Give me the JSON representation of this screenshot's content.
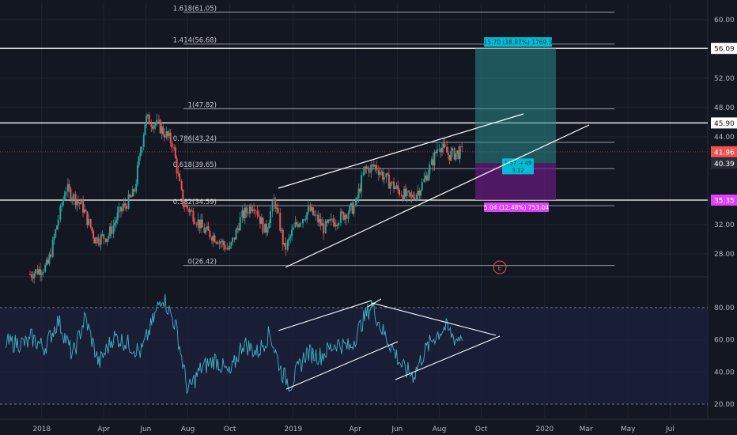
{
  "colors": {
    "background": "#131722",
    "grid": "#1f2433",
    "up": "#26a69a",
    "down": "#ef5350",
    "rsi_line": "#3fb4c6",
    "rsi_band": "#1b1f3b",
    "axis_text": "#b2b5be",
    "fib_line": "#9598a1",
    "white_line": "#ffffff",
    "price_line": "#ef5350",
    "target_zone": "#2a8a8c",
    "stop_zone": "#6a1a7e",
    "target_label": "#00bcd4",
    "stop_label": "#e040fb"
  },
  "chart_data": [
    {
      "type": "candlestick",
      "title": "",
      "x_axis_ticks": [
        "2018",
        "Apr",
        "Jun",
        "Aug",
        "Oct",
        "2019",
        "Apr",
        "Jun",
        "Aug",
        "Oct",
        "2020",
        "Mar",
        "May",
        "Jul"
      ],
      "y_axis_ticks": [
        "60.00",
        "52.00",
        "48.00",
        "44.00",
        "32.00",
        "28.00"
      ],
      "y_range": [
        24,
        63
      ],
      "price_segments": [
        {
          "x": [
            "2017-12-15",
            "2018-01-10",
            "2018-02-05",
            "2018-03-01",
            "2018-03-20",
            "2018-04-08",
            "2018-04-25",
            "2018-05-15",
            "2018-06-01",
            "2018-06-20",
            "2018-07-10",
            "2018-07-25",
            "2018-08-08",
            "2018-08-25",
            "2018-09-12",
            "2018-10-01",
            "2018-10-18",
            "2018-11-05",
            "2018-11-22",
            "2018-12-05",
            "2018-12-20",
            "2019-01-05",
            "2019-01-25",
            "2019-02-15",
            "2019-03-10",
            "2019-04-01",
            "2019-04-15",
            "2019-05-01",
            "2019-05-18",
            "2019-06-05",
            "2019-06-20",
            "2019-07-05",
            "2019-07-20",
            "2019-08-01",
            "2019-08-15",
            "2019-09-05"
          ],
          "close": [
            25.2,
            26.4,
            37.0,
            34.5,
            30.0,
            30.5,
            33.8,
            36.2,
            46.5,
            45.5,
            43.2,
            35.0,
            33.5,
            31.2,
            30.2,
            28.5,
            33.0,
            35.0,
            31.0,
            35.5,
            28.5,
            32.0,
            34.0,
            31.5,
            33.0,
            34.5,
            39.5,
            40.0,
            38.0,
            36.5,
            35.5,
            37.0,
            40.0,
            43.0,
            41.5,
            41.96
          ]
        }
      ],
      "fib_levels": [
        {
          "ratio": "1.618",
          "value": 61.05,
          "label": "1.618(61.05)"
        },
        {
          "ratio": "1.414",
          "value": 56.68,
          "label": "1.414(56.68)"
        },
        {
          "ratio": "1",
          "value": 47.82,
          "label": "1(47.82)"
        },
        {
          "ratio": "0.786",
          "value": 43.24,
          "label": "0.786(43.24)"
        },
        {
          "ratio": "0.618",
          "value": 39.65,
          "label": "0.618(39.65)"
        },
        {
          "ratio": "0.382",
          "value": 34.59,
          "label": "0.382(34.59)"
        },
        {
          "ratio": "0",
          "value": 26.42,
          "label": "0(26.42)"
        }
      ],
      "horizontal_lines": [
        56.09,
        45.9,
        35.35
      ],
      "price_labels": [
        {
          "value": "56.09",
          "level": 56.09,
          "bg": "#ffffff",
          "fg": "#131722"
        },
        {
          "value": "45.90",
          "level": 45.9,
          "bg": "#ffffff",
          "fg": "#131722"
        },
        {
          "value": "41.96",
          "level": 41.96,
          "bg": "#ef5350",
          "fg": "#ffffff"
        },
        {
          "value": "40.39",
          "level": 40.39,
          "bg": "#2a2e39",
          "fg": "#ffffff"
        },
        {
          "value": "35.35",
          "level": 35.35,
          "bg": "#e040fb",
          "fg": "#ffffff"
        }
      ],
      "position_tool": {
        "entry": 40.39,
        "target": 56.09,
        "stop": 35.35,
        "target_text": "15.70 (38.87%) 1769.3",
        "stop_text": "5.04 (12.48%) 753.04",
        "ratio_text_line1": "1.57 → 49",
        "ratio_text_line2": "3.12"
      },
      "earnings_marker": "E"
    },
    {
      "type": "line",
      "title": "",
      "y_axis_ticks": [
        "80.00",
        "60.00",
        "40.00",
        "20.00"
      ],
      "y_range": [
        12,
        92
      ],
      "band": [
        20,
        80
      ],
      "series": [
        {
          "x": [
            "2017-12-15",
            "2018-01-05",
            "2018-01-25",
            "2018-02-15",
            "2018-03-05",
            "2018-03-25",
            "2018-04-15",
            "2018-05-05",
            "2018-05-25",
            "2018-06-10",
            "2018-06-25",
            "2018-07-15",
            "2018-08-01",
            "2018-08-20",
            "2018-09-10",
            "2018-10-01",
            "2018-10-20",
            "2018-11-10",
            "2018-11-28",
            "2018-12-15",
            "2018-12-28",
            "2019-01-20",
            "2019-02-10",
            "2019-03-05",
            "2019-03-25",
            "2019-04-10",
            "2019-04-25",
            "2019-05-10",
            "2019-05-25",
            "2019-06-10",
            "2019-06-25",
            "2019-07-10",
            "2019-07-25",
            "2019-08-10",
            "2019-08-25",
            "2019-09-05"
          ],
          "values": [
            62,
            55,
            72,
            50,
            74,
            45,
            62,
            58,
            52,
            70,
            88,
            68,
            28,
            42,
            48,
            38,
            58,
            52,
            64,
            40,
            32,
            52,
            50,
            58,
            55,
            70,
            82,
            66,
            55,
            42,
            38,
            52,
            62,
            68,
            60,
            64
          ]
        }
      ]
    }
  ]
}
